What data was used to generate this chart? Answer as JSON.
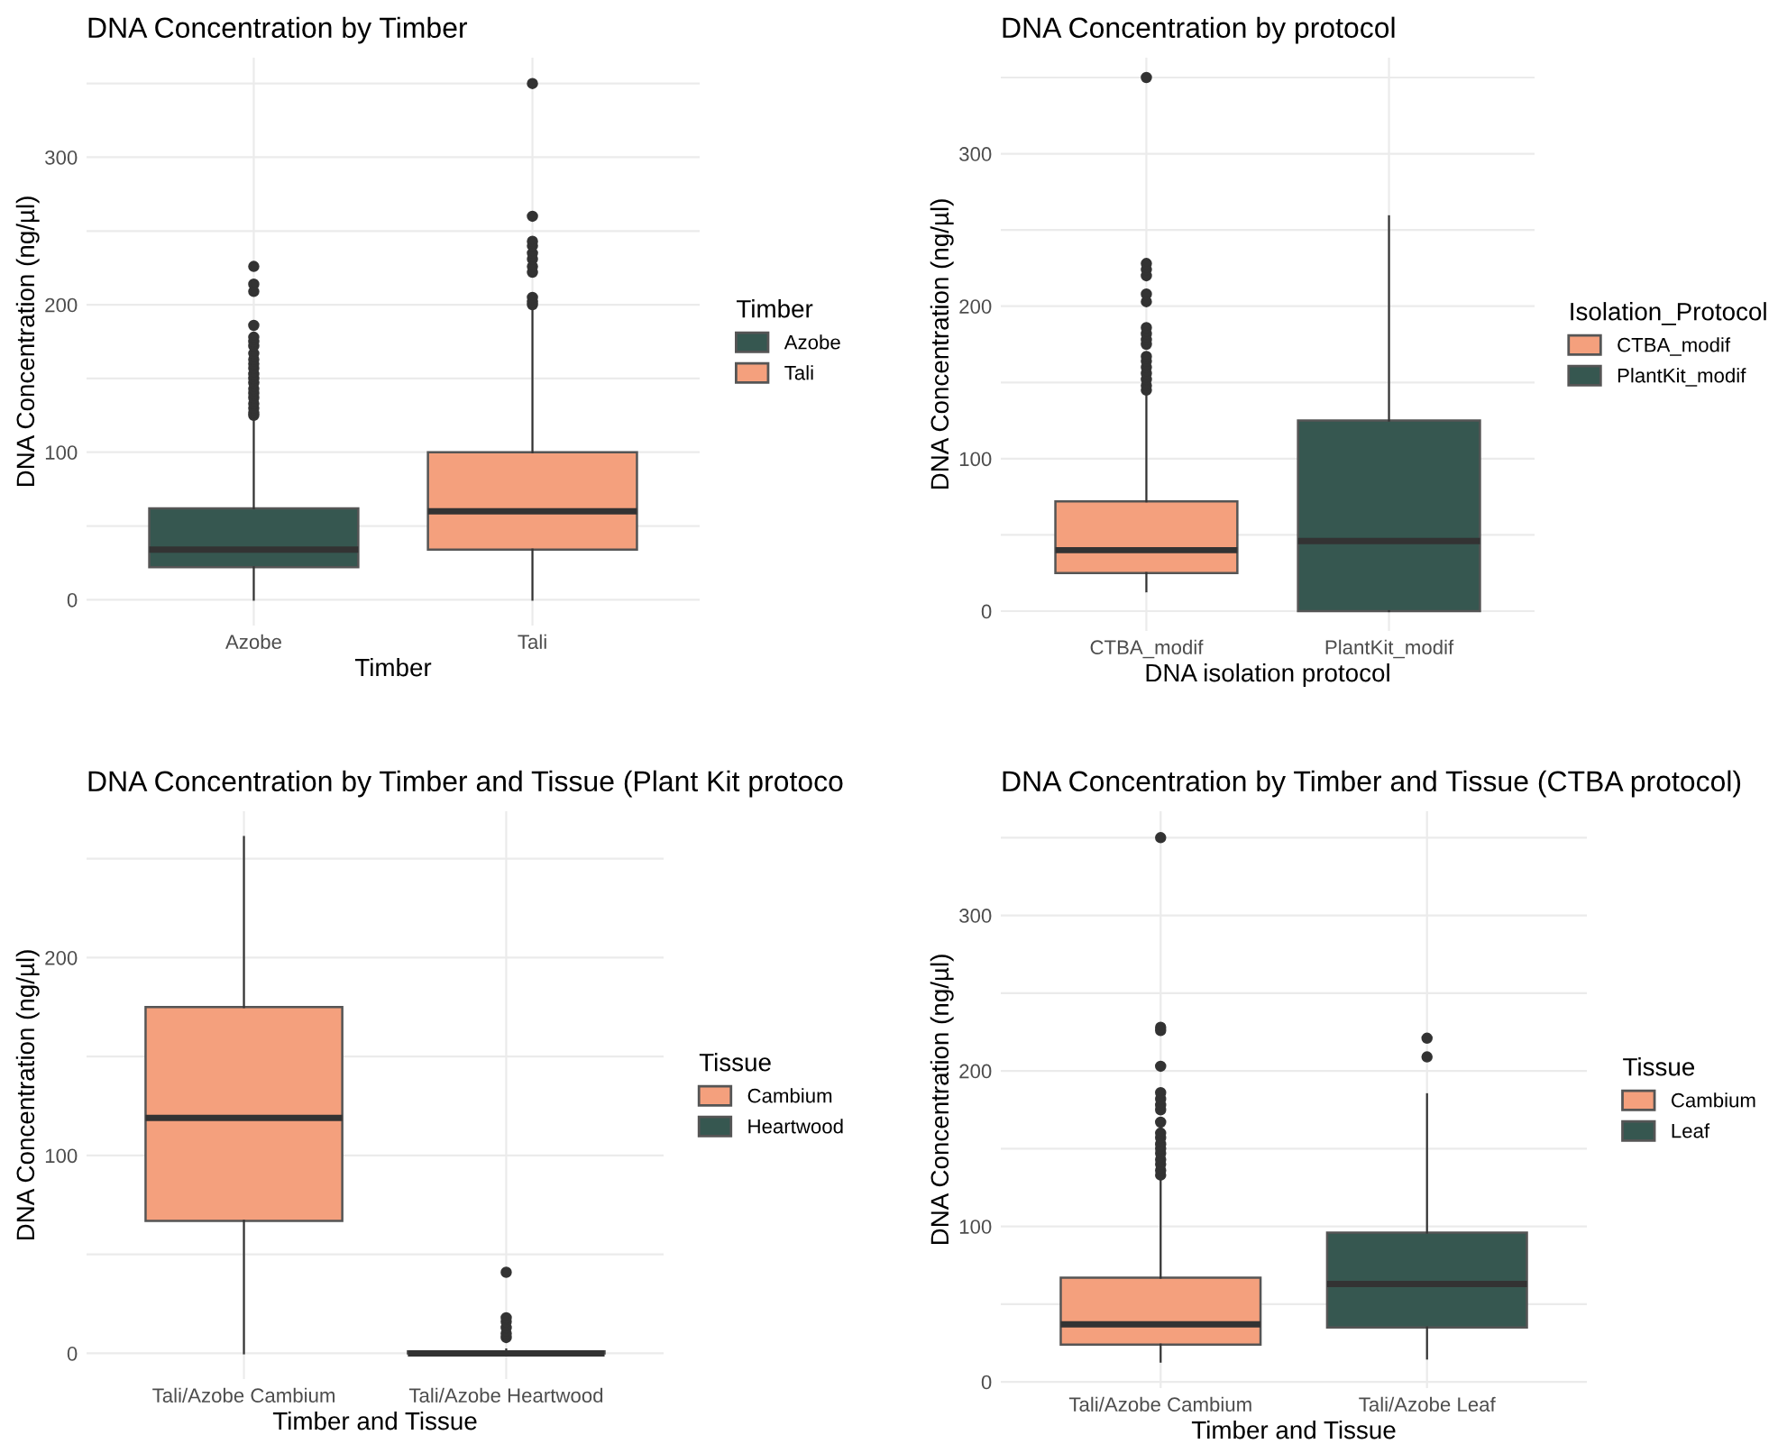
{
  "chart_data": [
    {
      "type": "box",
      "title": "DNA Concentration by Timber",
      "xlabel": "Timber",
      "ylabel": "DNA Concentration (ng/µl)",
      "legend_title": "Timber",
      "categories": [
        "Azobe",
        "Tali"
      ],
      "ylim": [
        -17.5,
        367.5
      ],
      "yticks": [
        0,
        {
          "value": 50,
          "label": null
        },
        100,
        {
          "value": 150,
          "label": null
        },
        200,
        {
          "value": 250,
          "label": null
        },
        300,
        {
          "value": 350,
          "label": null
        }
      ],
      "grid": true,
      "legend": "right",
      "series": [
        {
          "name": "Azobe",
          "color": "#365750",
          "boxes": [
            {
              "low": 0,
              "q1": 22,
              "median": 34,
              "q3": 62,
              "high": 122,
              "outliers": [
                125,
                127,
                130,
                133,
                137,
                140,
                143,
                147,
                150,
                153,
                157,
                160,
                163,
                167,
                172,
                175,
                178,
                186,
                209,
                214,
                226
              ]
            },
            null
          ]
        },
        {
          "name": "Tali",
          "color": "#f4a07d",
          "boxes": [
            null,
            {
              "low": 0,
              "q1": 34,
              "median": 60,
              "q3": 100,
              "high": 196,
              "outliers": [
                200,
                202,
                205,
                222,
                226,
                231,
                235,
                240,
                243,
                260,
                350
              ]
            }
          ]
        }
      ]
    },
    {
      "type": "box",
      "title": "DNA Concentration by protocol",
      "xlabel": "DNA isolation protocol",
      "ylabel": "DNA Concentration (ng/µl)",
      "legend_title": "Isolation_Protocol",
      "categories": [
        "CTBA_modif",
        "PlantKit_modif"
      ],
      "ylim": [
        -13,
        363
      ],
      "yticks": [
        0,
        {
          "value": 50,
          "label": null
        },
        100,
        {
          "value": 150,
          "label": null
        },
        200,
        {
          "value": 250,
          "label": null
        },
        300,
        {
          "value": 350,
          "label": null
        }
      ],
      "grid": true,
      "legend": "right",
      "series": [
        {
          "name": "CTBA_modif",
          "color": "#f4a07d",
          "boxes": [
            {
              "low": 13,
              "q1": 25,
              "median": 40,
              "q3": 72,
              "high": 143,
              "outliers": [
                145,
                148,
                152,
                156,
                160,
                164,
                167,
                175,
                178,
                182,
                186,
                203,
                208,
                220,
                224,
                228,
                350
              ]
            },
            null
          ]
        },
        {
          "name": "PlantKit_modif",
          "color": "#365750",
          "boxes": [
            null,
            {
              "low": 0,
              "q1": 0,
              "median": 46,
              "q3": 125,
              "high": 259
            }
          ]
        }
      ]
    },
    {
      "type": "box",
      "title": "DNA Concentration by Timber and Tissue (Plant Kit protoco",
      "xlabel": "Timber and Tissue",
      "ylabel": "DNA Concentration (ng/µl)",
      "legend_title": "Tissue",
      "categories": [
        "Tali/Azobe Cambium",
        "Tali/Azobe Heartwood"
      ],
      "ylim": [
        -13,
        274
      ],
      "yticks": [
        0,
        {
          "value": 50,
          "label": null
        },
        100,
        {
          "value": 150,
          "label": null
        },
        200,
        {
          "value": 250,
          "label": null
        }
      ],
      "grid": true,
      "legend": "right",
      "series": [
        {
          "name": "Cambium",
          "color": "#f4a07d",
          "boxes": [
            {
              "low": 0,
              "q1": 67,
              "median": 119,
              "q3": 175,
              "high": 261
            },
            null
          ]
        },
        {
          "name": "Heartwood",
          "color": "#365750",
          "boxes": [
            null,
            {
              "low": 0,
              "q1": 0,
              "median": 0,
              "q3": 1,
              "high": 2,
              "outliers": [
                8,
                10,
                13,
                16,
                18,
                41
              ]
            }
          ]
        }
      ]
    },
    {
      "type": "box",
      "title": "DNA Concentration by Timber and Tissue (CTBA protocol)",
      "xlabel": "Timber and Tissue",
      "ylabel": "DNA Concentration (ng/µl)",
      "legend_title": "Tissue",
      "categories": [
        "Tali/Azobe Cambium",
        "Tali/Azobe Leaf"
      ],
      "ylim": [
        -4,
        367
      ],
      "yticks": [
        0,
        {
          "value": 50,
          "label": null
        },
        100,
        {
          "value": 150,
          "label": null
        },
        200,
        {
          "value": 250,
          "label": null
        },
        300,
        {
          "value": 350,
          "label": null
        }
      ],
      "grid": true,
      "legend": "right",
      "series": [
        {
          "name": "Cambium",
          "color": "#f4a07d",
          "boxes": [
            {
              "low": 13,
              "q1": 24,
              "median": 37,
              "q3": 67,
              "high": 130,
              "outliers": [
                133,
                136,
                140,
                143,
                147,
                150,
                153,
                157,
                160,
                167,
                175,
                178,
                182,
                186,
                203,
                226,
                228,
                350
              ]
            },
            null
          ]
        },
        {
          "name": "Leaf",
          "color": "#365750",
          "boxes": [
            null,
            {
              "low": 15,
              "q1": 35,
              "median": 63,
              "q3": 96,
              "high": 185,
              "outliers": [
                209,
                221
              ]
            }
          ]
        }
      ]
    }
  ]
}
